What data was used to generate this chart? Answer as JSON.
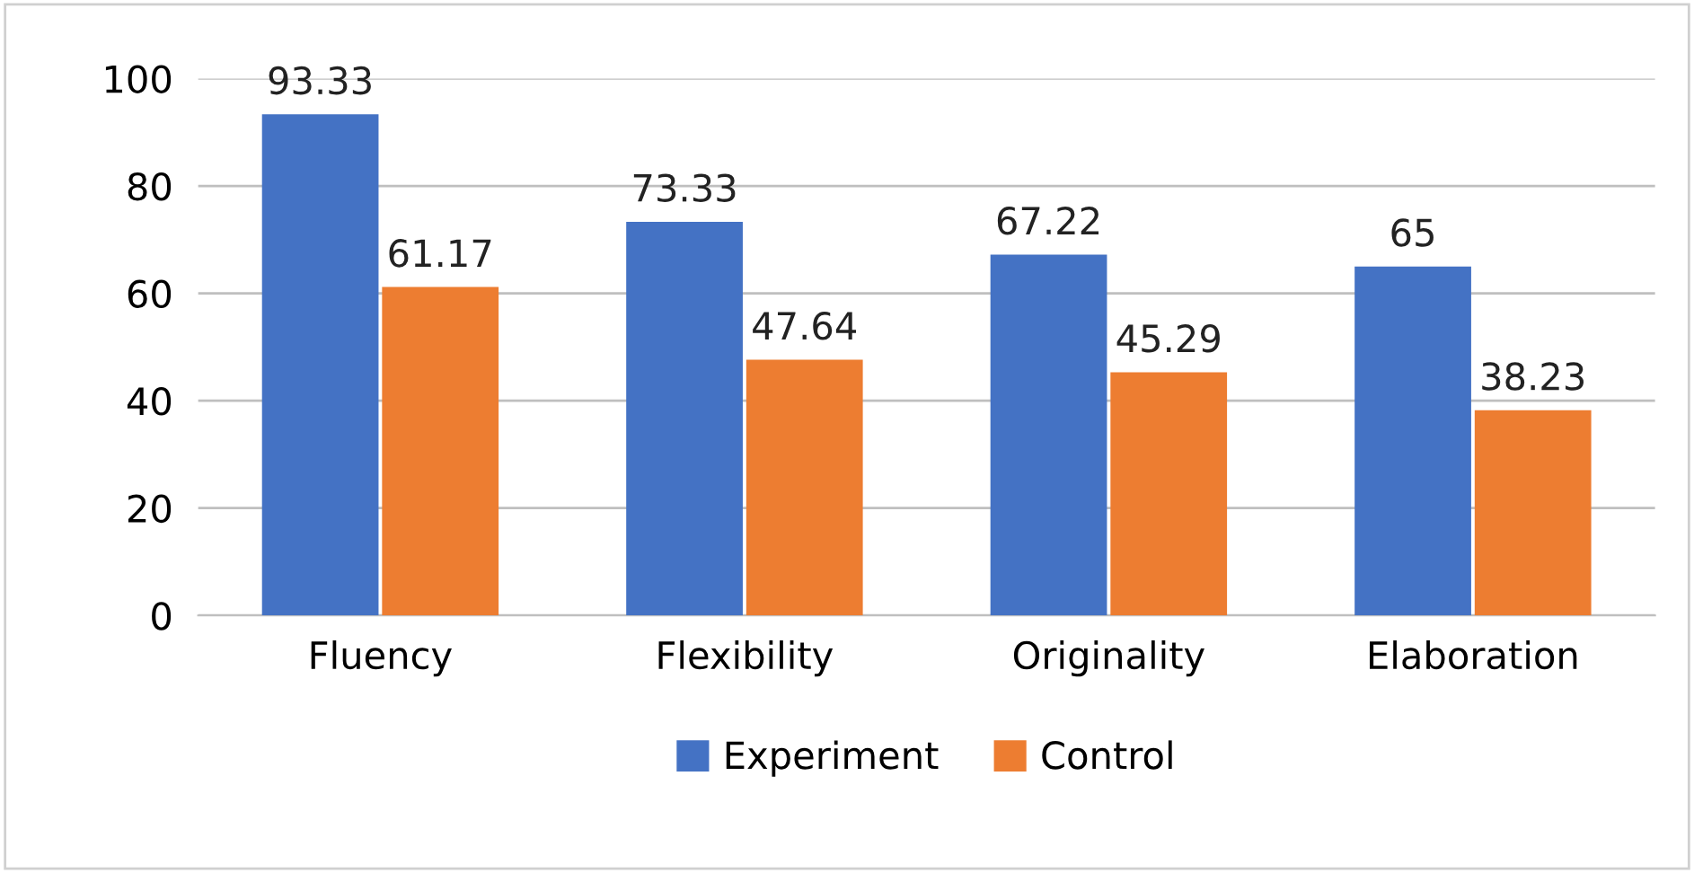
{
  "chart_data": {
    "type": "bar",
    "categories": [
      "Fluency",
      "Flexibility",
      "Originality",
      "Elaboration"
    ],
    "series": [
      {
        "name": "Experiment",
        "color": "#4472c4",
        "values": [
          93.33,
          73.33,
          67.22,
          65
        ]
      },
      {
        "name": "Control",
        "color": "#ed7d31",
        "values": [
          61.17,
          47.64,
          45.29,
          38.23
        ]
      }
    ],
    "ylim": [
      0,
      100
    ],
    "yticks": [
      0,
      20,
      40,
      60,
      80,
      100
    ],
    "grid": "y",
    "legend": "bottom",
    "data_labels": true
  }
}
